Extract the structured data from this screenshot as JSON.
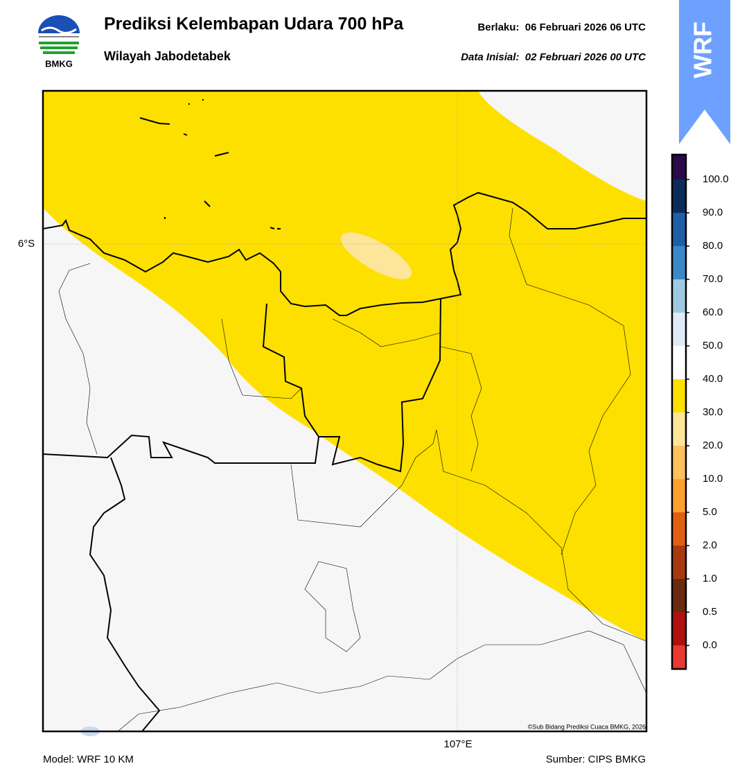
{
  "header": {
    "title": "Prediksi Kelembapan Udara 700 hPa",
    "region": "Wilayah Jabodetabek",
    "valid": "Berlaku:  06 Februari 2026 06 UTC",
    "initial": "Data Inisial:  02 Februari 2026 00 UTC",
    "logo_text": "BMKG"
  },
  "badge": "WRF",
  "map": {
    "lat_label": "6°S",
    "lon_label": "107°E",
    "credit": "©Sub Bidang Prediksi Cuaca BMKG, 2026"
  },
  "colorbar": {
    "labels": [
      "100.0",
      "90.0",
      "80.0",
      "70.0",
      "60.0",
      "50.0",
      "40.0",
      "30.0",
      "20.0",
      "10.0",
      "5.0",
      "2.0",
      "1.0",
      "0.5",
      "0.0"
    ],
    "colors": [
      "#2a0a4a",
      "#0a2c5a",
      "#1f5fa8",
      "#3a88c8",
      "#9ecae1",
      "#deebf7",
      "#ffffff",
      "#fde000",
      "#fde59a",
      "#fdc05a",
      "#fda030",
      "#e06010",
      "#a83a10",
      "#6a2a10",
      "#b01010",
      "#e83a30"
    ]
  },
  "footer": {
    "model": "Model: WRF 10 KM",
    "source": "Sumber: CIPS BMKG"
  }
}
